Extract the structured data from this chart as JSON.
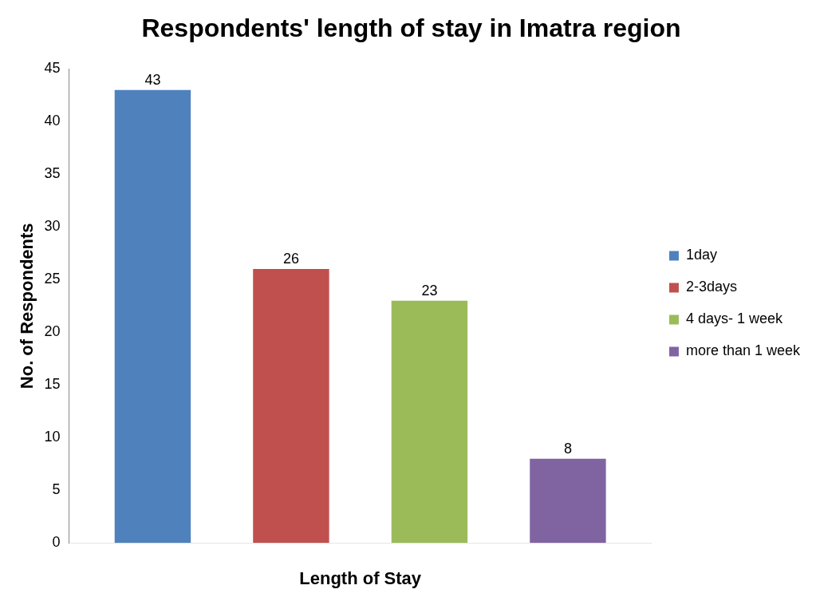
{
  "chart_data": {
    "type": "bar",
    "title": "Respondents' length of stay in Imatra region",
    "xlabel": "Length of Stay",
    "ylabel": "No. of Respondents",
    "categories": [
      null
    ],
    "series": [
      {
        "name": "1day",
        "color": "#4f81bd",
        "values": [
          43
        ]
      },
      {
        "name": "2-3days",
        "color": "#c0504d",
        "values": [
          26
        ]
      },
      {
        "name": "4 days- 1 week",
        "color": "#9bbb59",
        "values": [
          23
        ]
      },
      {
        "name": "more than 1 week",
        "color": "#8064a2",
        "values": [
          8
        ]
      }
    ],
    "ylim": [
      0,
      45
    ],
    "yticks": [
      0,
      5,
      10,
      15,
      20,
      25,
      30,
      35,
      40,
      45
    ],
    "grid": false,
    "legend": "right",
    "data_labels": true
  }
}
